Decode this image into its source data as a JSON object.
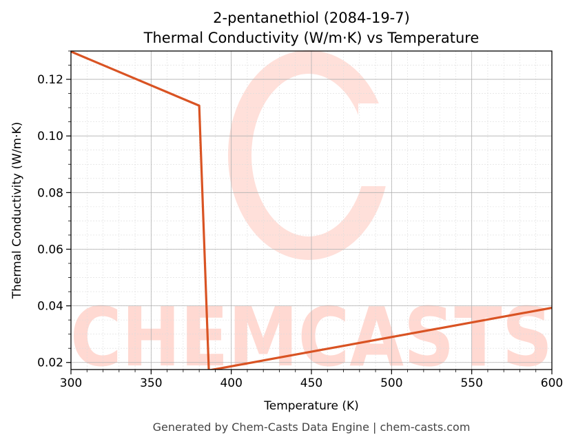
{
  "chart_data": {
    "type": "line",
    "title": "2-pentanethiol (2084-19-7)",
    "subtitle": "Thermal Conductivity (W/m·K) vs Temperature",
    "xlabel": "Temperature (K)",
    "ylabel": "Thermal Conductivity (W/m·K)",
    "xlim": [
      300,
      600
    ],
    "ylim": [
      0.0175,
      0.13
    ],
    "xticks": [
      300,
      350,
      400,
      450,
      500,
      550,
      600
    ],
    "yticks": [
      0.02,
      0.04,
      0.06,
      0.08,
      0.1,
      0.12
    ],
    "ytick_labels": [
      "0.02",
      "0.04",
      "0.06",
      "0.08",
      "0.10",
      "0.12"
    ],
    "grid": true,
    "series": [
      {
        "color": "#d95323",
        "x": [
          300,
          380,
          386,
          600
        ],
        "y": [
          0.1298,
          0.1107,
          0.0172,
          0.0393
        ]
      }
    ],
    "watermark": "CHEMCASTS",
    "footer": "Generated by Chem-Casts Data Engine | chem-casts.com"
  }
}
